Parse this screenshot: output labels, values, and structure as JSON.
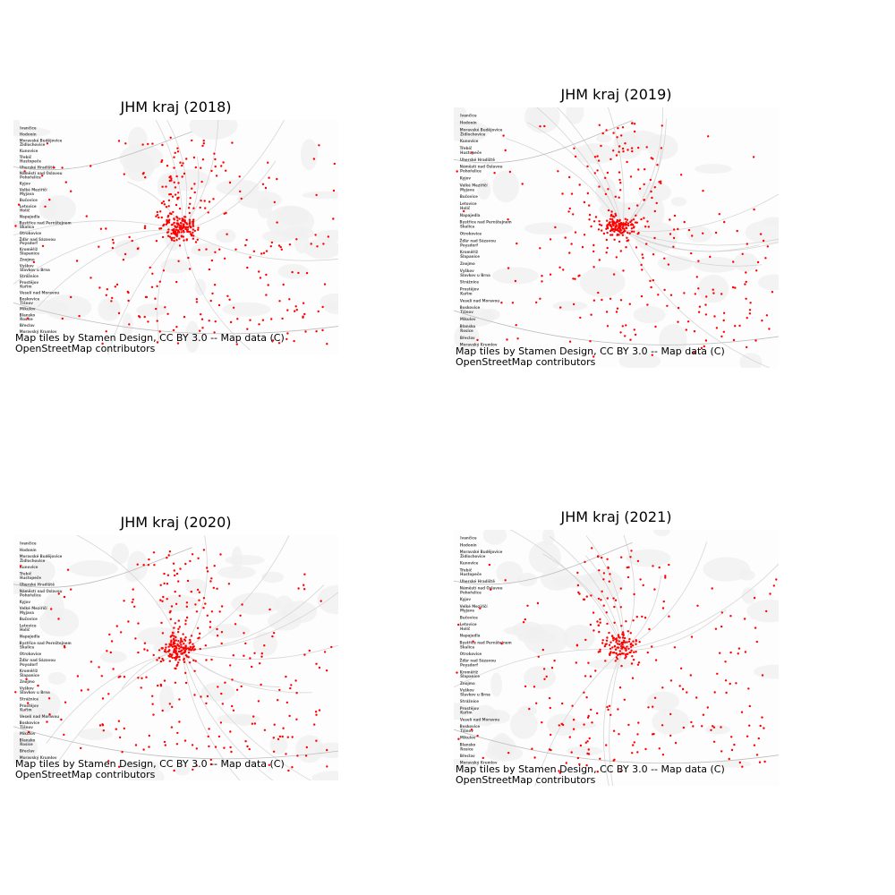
{
  "figure": {
    "panels": [
      {
        "title": "JHM kraj (2018)",
        "dot_count": 420,
        "seed": 11
      },
      {
        "title": "JHM kraj (2019)",
        "dot_count": 400,
        "seed": 23
      },
      {
        "title": "JHM kraj (2020)",
        "dot_count": 430,
        "seed": 37
      },
      {
        "title": "JHM kraj (2021)",
        "dot_count": 360,
        "seed": 51
      }
    ],
    "attribution_line1": "Map tiles by Stamen Design, CC BY 3.0 -- Map data (C)",
    "attribution_line2": "OpenStreetMap contributors",
    "dot_color": "#ff0000",
    "basemap_color": "#f0f0f0",
    "place_labels": [
      "Žďár nad Sázavou",
      "Bystřice nad Pernštejnem",
      "Letovice",
      "Velké Meziříčí",
      "Náměstí nad Oslavou",
      "Třebíč",
      "Moravské Budějovice",
      "Moravský Krumlov",
      "Blansko",
      "Boskovice",
      "Prostějov",
      "Vyškov",
      "Kroměříž",
      "Otrokovice",
      "Napajedla",
      "Bučovice",
      "Kyjov",
      "Uherské Hradiště",
      "Kunovice",
      "Hodonín",
      "Břeclav",
      "Mikulov",
      "Veselí nad Moravou",
      "Strážnice",
      "Znojmo",
      "Poysdorf",
      "Skalica",
      "Holíč",
      "Myjava",
      "Pohořelice",
      "Hustopeče",
      "Židlochovice",
      "Ivančice",
      "Rosice",
      "Tišnov",
      "Kuřim",
      "Slavkov u Brna",
      "Šlapanice"
    ]
  }
}
